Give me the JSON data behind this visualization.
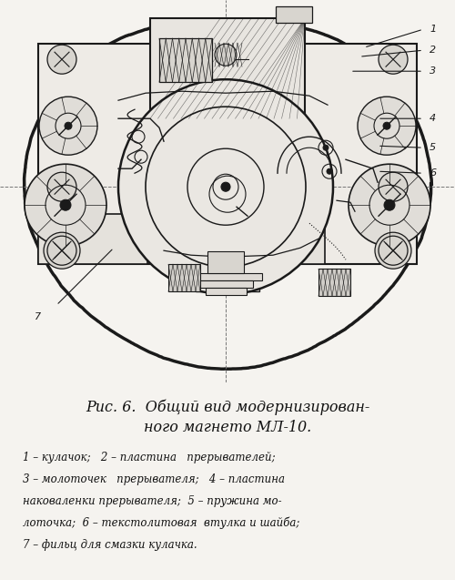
{
  "bg": "#f5f3ef",
  "lc": "#1a1a1a",
  "fig_w": 5.0,
  "fig_h": 6.37,
  "dpi": 100,
  "title1": "Рис. 6.  Общий вид модернизирован-",
  "title2": "ного магнето МЛ-10.",
  "cap": [
    "1 – кулачок;   2 – пластина   прерывателей;",
    "3 – молоточек   прерывателя;   4 – пластина",
    "наковаленки прерывателя;  5 – пружина мо-",
    "лоточка;  6 – текстолитовая  втулка и шайба;",
    "7 – фильц для смазки кулачка."
  ]
}
